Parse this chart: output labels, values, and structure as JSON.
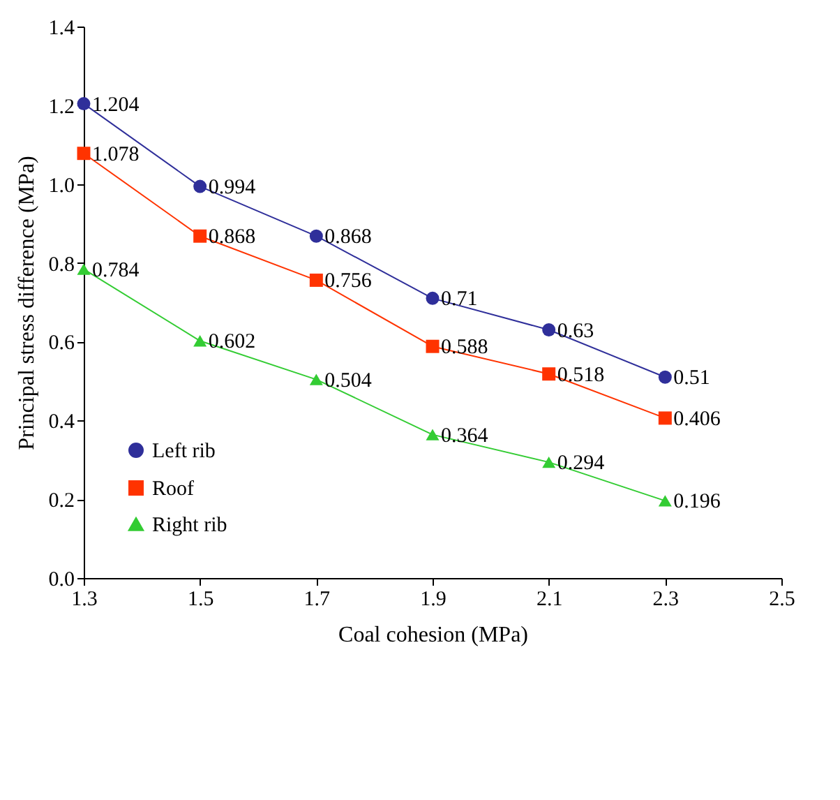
{
  "chart_data": {
    "type": "line",
    "xlabel": "Coal cohesion (MPa)",
    "ylabel": "Principal stress difference (MPa)",
    "x": [
      1.3,
      1.5,
      1.7,
      1.9,
      2.1,
      2.3
    ],
    "series": [
      {
        "name": "Left rib",
        "color": "#2f2f9a",
        "marker": "circle",
        "values": [
          1.204,
          0.994,
          0.868,
          0.71,
          0.63,
          0.51
        ]
      },
      {
        "name": "Roof",
        "color": "#ff3300",
        "marker": "square",
        "values": [
          1.078,
          0.868,
          0.756,
          0.588,
          0.518,
          0.406
        ]
      },
      {
        "name": "Right rib",
        "color": "#33cc33",
        "marker": "triangle",
        "values": [
          0.784,
          0.602,
          0.504,
          0.364,
          0.294,
          0.196
        ]
      }
    ],
    "xlim": [
      1.3,
      2.5
    ],
    "xticks": [
      1.3,
      1.5,
      1.7,
      1.9,
      2.1,
      2.3,
      2.5
    ],
    "ylim": [
      0,
      1.4
    ],
    "yticks": [
      {
        "value": 0,
        "label": "0.0"
      },
      0.2,
      0.4,
      0.6,
      0.8,
      {
        "value": 1,
        "label": "1.0"
      },
      1.2,
      1.4
    ],
    "data_labels": true,
    "grid": false,
    "legend": "bottom left",
    "line_style": "solid"
  }
}
